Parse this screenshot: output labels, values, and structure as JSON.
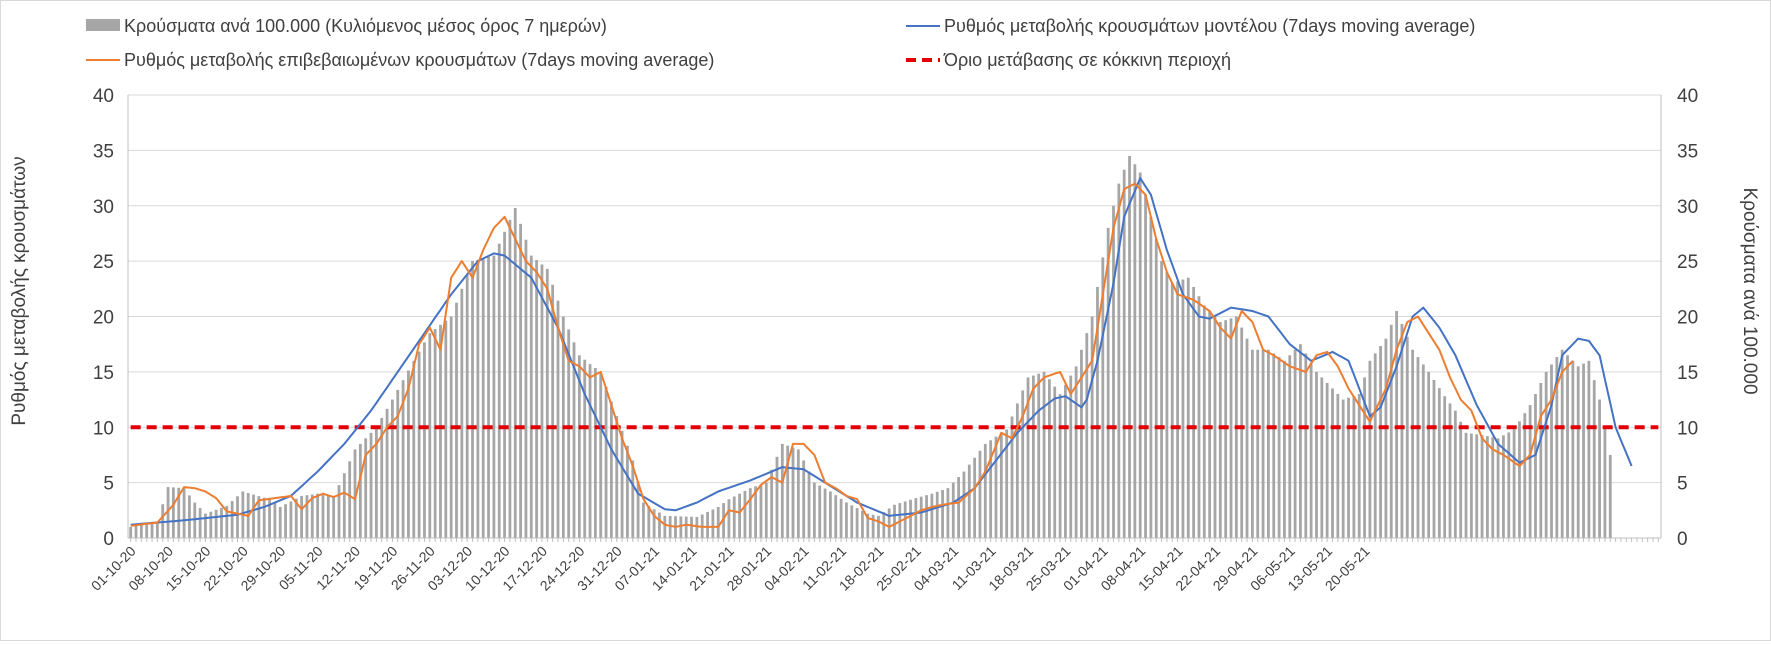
{
  "chart_data": {
    "type": "bar",
    "yaxis_left": {
      "label": "Ρυθμός μεταβολής κρουσμάτων",
      "range": [
        0,
        40
      ],
      "ticks": [
        "0",
        "5",
        "10",
        "15",
        "20",
        "25",
        "30",
        "35",
        "40"
      ]
    },
    "yaxis_right": {
      "label": "Κρούσματα ανά 100.000",
      "range": [
        0,
        40
      ],
      "ticks": [
        "0",
        "5",
        "10",
        "15",
        "20",
        "25",
        "30",
        "35",
        "40"
      ]
    },
    "grid": true,
    "legend_position": "top",
    "x_tick_labels": [
      "01-10-20",
      "08-10-20",
      "15-10-20",
      "22-10-20",
      "29-10-20",
      "05-11-20",
      "12-11-20",
      "19-11-20",
      "26-11-20",
      "03-12-20",
      "10-12-20",
      "17-12-20",
      "24-12-20",
      "31-12-20",
      "07-01-21",
      "14-01-21",
      "21-01-21",
      "28-01-21",
      "04-02-21",
      "11-02-21",
      "18-02-21",
      "25-02-21",
      "04-03-21",
      "11-03-21",
      "18-03-21",
      "25-03-21",
      "01-04-21",
      "08-04-21",
      "15-04-21",
      "22-04-21",
      "29-04-21",
      "06-05-21",
      "13-05-21",
      "20-05-21"
    ],
    "series": [
      {
        "name": "Κρούσματα ανά 100.000 (Κυλιόμενος μέσος όρος 7 ημερών)",
        "kind": "bar",
        "axis": "right",
        "color": "#a6a6a6",
        "anchors": [
          [
            0,
            1.0
          ],
          [
            5,
            1.5
          ],
          [
            7,
            4.6
          ],
          [
            10,
            4.5
          ],
          [
            12,
            3.2
          ],
          [
            14,
            2.2
          ],
          [
            18,
            2.9
          ],
          [
            21,
            4.2
          ],
          [
            26,
            3.5
          ],
          [
            28,
            2.8
          ],
          [
            32,
            3.8
          ],
          [
            35,
            4.0
          ],
          [
            38,
            3.7
          ],
          [
            42,
            8.0
          ],
          [
            46,
            10.0
          ],
          [
            49,
            12.5
          ],
          [
            53,
            16.0
          ],
          [
            56,
            18.5
          ],
          [
            60,
            20.0
          ],
          [
            64,
            25.0
          ],
          [
            68,
            25.5
          ],
          [
            72,
            29.8
          ],
          [
            75,
            25.5
          ],
          [
            78,
            24.3
          ],
          [
            81,
            20.0
          ],
          [
            84,
            16.5
          ],
          [
            86,
            15.7
          ],
          [
            88,
            15.0
          ],
          [
            91,
            11.0
          ],
          [
            94,
            7.0
          ],
          [
            96,
            3.2
          ],
          [
            100,
            2.0
          ],
          [
            106,
            1.9
          ],
          [
            110,
            2.8
          ],
          [
            112,
            3.5
          ],
          [
            116,
            4.5
          ],
          [
            119,
            5.0
          ],
          [
            122,
            8.5
          ],
          [
            125,
            8.0
          ],
          [
            128,
            5.0
          ],
          [
            131,
            4.2
          ],
          [
            134,
            3.2
          ],
          [
            138,
            2.2
          ],
          [
            140,
            2.0
          ],
          [
            143,
            3.0
          ],
          [
            147,
            3.6
          ],
          [
            150,
            4.0
          ],
          [
            153,
            4.5
          ],
          [
            156,
            6.0
          ],
          [
            160,
            8.5
          ],
          [
            164,
            9.8
          ],
          [
            168,
            14.5
          ],
          [
            171,
            15.0
          ],
          [
            174,
            13.0
          ],
          [
            177,
            15.5
          ],
          [
            180,
            20.0
          ],
          [
            183,
            28.0
          ],
          [
            185,
            32.0
          ],
          [
            187,
            34.5
          ],
          [
            189,
            33.0
          ],
          [
            191,
            29.0
          ],
          [
            193,
            25.0
          ],
          [
            195,
            23.0
          ],
          [
            198,
            23.5
          ],
          [
            201,
            21.0
          ],
          [
            204,
            19.5
          ],
          [
            207,
            20.0
          ],
          [
            210,
            17.0
          ],
          [
            213,
            17.0
          ],
          [
            216,
            16.0
          ],
          [
            219,
            17.5
          ],
          [
            222,
            15.0
          ],
          [
            224,
            14.0
          ],
          [
            227,
            12.5
          ],
          [
            230,
            13.0
          ],
          [
            232,
            16.0
          ],
          [
            235,
            18.0
          ],
          [
            237,
            20.5
          ],
          [
            240,
            17.0
          ],
          [
            243,
            15.0
          ],
          [
            246,
            12.8
          ],
          [
            248,
            11.5
          ],
          [
            250,
            9.5
          ],
          [
            253,
            9.3
          ],
          [
            256,
            9.0
          ],
          [
            259,
            9.8
          ],
          [
            262,
            12.0
          ],
          [
            265,
            15.0
          ],
          [
            268,
            17.0
          ],
          [
            271,
            15.5
          ],
          [
            273,
            16.0
          ],
          [
            275,
            12.5
          ],
          [
            277,
            7.5
          ]
        ]
      },
      {
        "name": "Ρυθμός μεταβολής κρουσμάτων μοντέλου (7days moving average)",
        "kind": "line",
        "axis": "left",
        "color": "#4472c4",
        "anchors": [
          [
            0,
            1.2
          ],
          [
            10,
            1.6
          ],
          [
            20,
            2.1
          ],
          [
            25,
            2.8
          ],
          [
            30,
            3.8
          ],
          [
            35,
            6.0
          ],
          [
            40,
            8.5
          ],
          [
            45,
            11.5
          ],
          [
            50,
            15.0
          ],
          [
            55,
            18.5
          ],
          [
            60,
            22.0
          ],
          [
            65,
            25.0
          ],
          [
            68,
            25.7
          ],
          [
            70,
            25.5
          ],
          [
            75,
            23.5
          ],
          [
            80,
            19.0
          ],
          [
            85,
            13.0
          ],
          [
            90,
            8.0
          ],
          [
            95,
            4.0
          ],
          [
            100,
            2.6
          ],
          [
            102,
            2.5
          ],
          [
            106,
            3.2
          ],
          [
            110,
            4.2
          ],
          [
            116,
            5.2
          ],
          [
            122,
            6.4
          ],
          [
            126,
            6.2
          ],
          [
            130,
            5.0
          ],
          [
            136,
            3.2
          ],
          [
            142,
            2.0
          ],
          [
            148,
            2.3
          ],
          [
            154,
            3.2
          ],
          [
            158,
            4.5
          ],
          [
            162,
            7.0
          ],
          [
            166,
            9.5
          ],
          [
            170,
            11.5
          ],
          [
            173,
            12.6
          ],
          [
            175,
            12.8
          ],
          [
            178,
            11.8
          ],
          [
            179,
            12.5
          ],
          [
            181,
            16.0
          ],
          [
            184,
            23.0
          ],
          [
            186,
            29.0
          ],
          [
            189,
            32.5
          ],
          [
            191,
            31.0
          ],
          [
            194,
            26.0
          ],
          [
            197,
            22.0
          ],
          [
            200,
            20.0
          ],
          [
            202,
            19.8
          ],
          [
            206,
            20.8
          ],
          [
            210,
            20.5
          ],
          [
            213,
            20.0
          ],
          [
            217,
            17.5
          ],
          [
            221,
            16.0
          ],
          [
            225,
            16.8
          ],
          [
            228,
            16.0
          ],
          [
            230,
            13.5
          ],
          [
            232,
            11.0
          ],
          [
            234,
            11.8
          ],
          [
            237,
            15.5
          ],
          [
            240,
            20.0
          ],
          [
            242,
            20.8
          ],
          [
            245,
            19.0
          ],
          [
            248,
            16.5
          ],
          [
            252,
            12.0
          ],
          [
            256,
            8.5
          ],
          [
            260,
            6.8
          ],
          [
            263,
            7.5
          ],
          [
            266,
            12.0
          ],
          [
            268,
            16.5
          ],
          [
            271,
            18.0
          ],
          [
            273,
            17.8
          ],
          [
            275,
            16.5
          ],
          [
            278,
            10.0
          ],
          [
            281,
            6.5
          ]
        ]
      },
      {
        "name": "Ρυθμός μεταβολής επιβεβαιωμένων κρουσμάτων (7days moving average)",
        "kind": "line",
        "axis": "left",
        "color": "#ed7d31",
        "anchors": [
          [
            0,
            1.1
          ],
          [
            5,
            1.4
          ],
          [
            8,
            3.0
          ],
          [
            10,
            4.6
          ],
          [
            12,
            4.5
          ],
          [
            14,
            4.2
          ],
          [
            16,
            3.6
          ],
          [
            18,
            2.4
          ],
          [
            20,
            2.2
          ],
          [
            22,
            2.0
          ],
          [
            24,
            3.4
          ],
          [
            27,
            3.6
          ],
          [
            30,
            3.8
          ],
          [
            32,
            2.6
          ],
          [
            34,
            3.6
          ],
          [
            36,
            4.0
          ],
          [
            38,
            3.7
          ],
          [
            40,
            4.1
          ],
          [
            42,
            3.5
          ],
          [
            44,
            7.5
          ],
          [
            46,
            8.5
          ],
          [
            48,
            10.0
          ],
          [
            50,
            11.0
          ],
          [
            52,
            13.5
          ],
          [
            54,
            17.5
          ],
          [
            56,
            19.0
          ],
          [
            58,
            17.0
          ],
          [
            60,
            23.5
          ],
          [
            62,
            25.0
          ],
          [
            64,
            23.5
          ],
          [
            66,
            26.0
          ],
          [
            68,
            28.0
          ],
          [
            70,
            29.0
          ],
          [
            72,
            27.0
          ],
          [
            74,
            25.0
          ],
          [
            76,
            24.0
          ],
          [
            78,
            22.5
          ],
          [
            80,
            19.0
          ],
          [
            82,
            16.0
          ],
          [
            84,
            15.5
          ],
          [
            86,
            14.5
          ],
          [
            88,
            15.0
          ],
          [
            90,
            12.0
          ],
          [
            92,
            9.0
          ],
          [
            94,
            6.5
          ],
          [
            96,
            3.5
          ],
          [
            98,
            2.0
          ],
          [
            100,
            1.2
          ],
          [
            102,
            1.0
          ],
          [
            104,
            1.2
          ],
          [
            107,
            1.0
          ],
          [
            110,
            1.0
          ],
          [
            112,
            2.5
          ],
          [
            114,
            2.3
          ],
          [
            116,
            3.5
          ],
          [
            118,
            4.8
          ],
          [
            120,
            5.5
          ],
          [
            122,
            5.0
          ],
          [
            124,
            8.5
          ],
          [
            126,
            8.5
          ],
          [
            128,
            7.5
          ],
          [
            130,
            5.0
          ],
          [
            132,
            4.5
          ],
          [
            134,
            3.8
          ],
          [
            136,
            3.5
          ],
          [
            138,
            1.8
          ],
          [
            140,
            1.5
          ],
          [
            142,
            1.0
          ],
          [
            144,
            1.5
          ],
          [
            146,
            2.0
          ],
          [
            148,
            2.5
          ],
          [
            150,
            2.8
          ],
          [
            152,
            3.0
          ],
          [
            155,
            3.2
          ],
          [
            158,
            4.5
          ],
          [
            160,
            6.0
          ],
          [
            163,
            9.5
          ],
          [
            165,
            9.0
          ],
          [
            167,
            11.0
          ],
          [
            169,
            13.5
          ],
          [
            171,
            14.5
          ],
          [
            174,
            15.0
          ],
          [
            176,
            13.0
          ],
          [
            178,
            14.5
          ],
          [
            180,
            16.0
          ],
          [
            182,
            22.0
          ],
          [
            184,
            28.0
          ],
          [
            186,
            31.5
          ],
          [
            188,
            32.0
          ],
          [
            190,
            31.0
          ],
          [
            192,
            27.0
          ],
          [
            194,
            24.0
          ],
          [
            196,
            22.0
          ],
          [
            199,
            21.5
          ],
          [
            202,
            20.5
          ],
          [
            204,
            19.0
          ],
          [
            206,
            18.0
          ],
          [
            208,
            20.5
          ],
          [
            210,
            19.5
          ],
          [
            212,
            17.0
          ],
          [
            214,
            16.5
          ],
          [
            217,
            15.5
          ],
          [
            220,
            15.0
          ],
          [
            222,
            16.5
          ],
          [
            224,
            16.8
          ],
          [
            226,
            15.5
          ],
          [
            228,
            13.5
          ],
          [
            230,
            12.0
          ],
          [
            232,
            10.5
          ],
          [
            235,
            13.5
          ],
          [
            237,
            17.0
          ],
          [
            239,
            19.5
          ],
          [
            241,
            20.0
          ],
          [
            243,
            18.5
          ],
          [
            245,
            17.0
          ],
          [
            247,
            14.5
          ],
          [
            249,
            12.5
          ],
          [
            251,
            11.5
          ],
          [
            253,
            9.0
          ],
          [
            255,
            8.0
          ],
          [
            257,
            7.5
          ],
          [
            260,
            6.5
          ],
          [
            262,
            7.5
          ],
          [
            264,
            11.0
          ],
          [
            266,
            12.5
          ],
          [
            268,
            15.0
          ],
          [
            270,
            16.0
          ]
        ]
      },
      {
        "name": "Όριο μετάβασης σε κόκκινη περιοχή",
        "kind": "threshold",
        "axis": "left",
        "color": "#e00000",
        "value": 10
      }
    ]
  }
}
